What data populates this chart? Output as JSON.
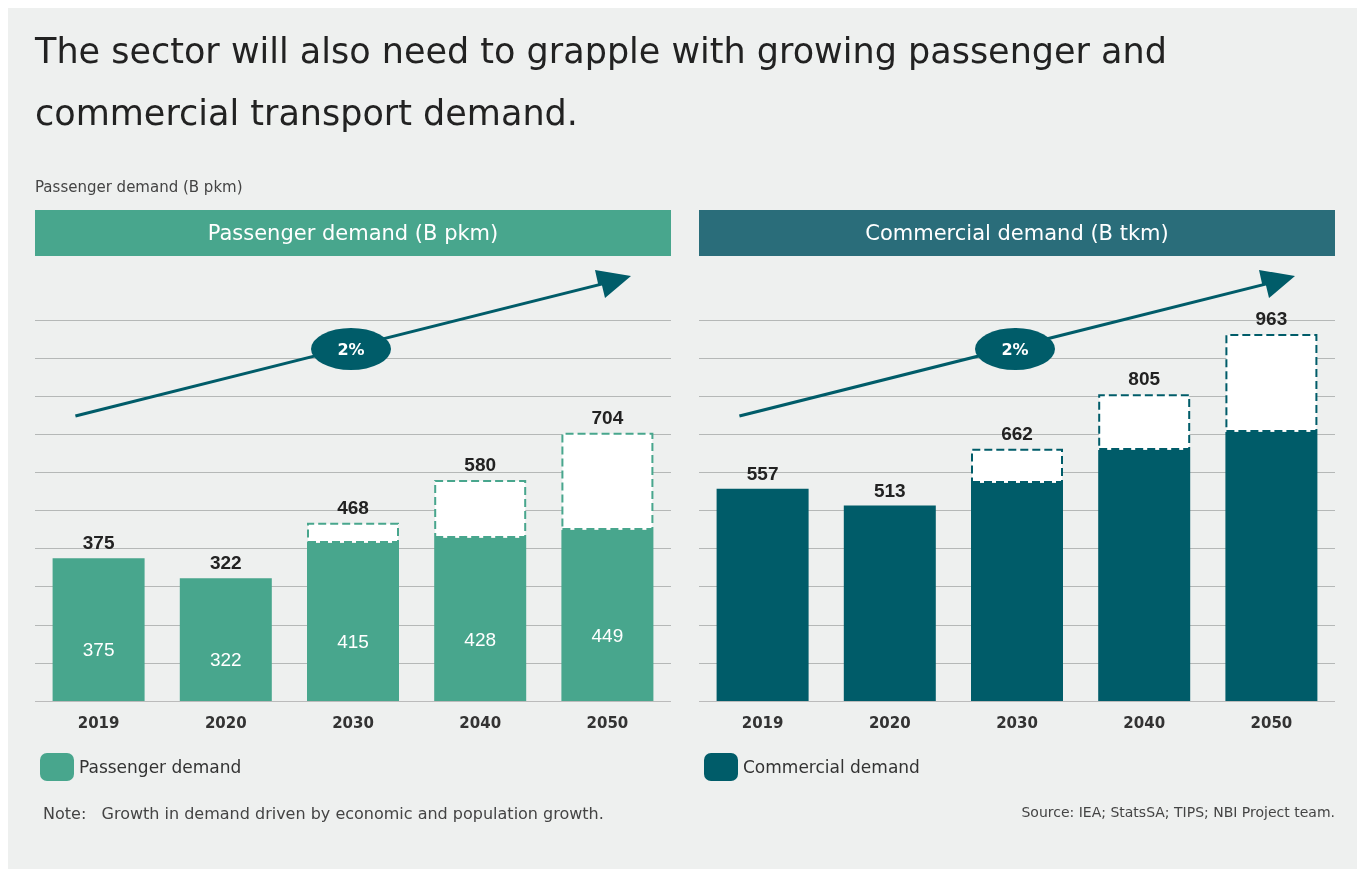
{
  "chart_data": [
    {
      "type": "bar",
      "title": "The sector will also need to grapple with growing passenger and commercial transport demand.",
      "subtitle": "Passenger demand (B pkm)",
      "ylabel": "Passenger demand (B pkm)",
      "categories": [
        "2019",
        "2020",
        "2030",
        "2040",
        "2050"
      ],
      "stacked": true,
      "series": [
        {
          "name": "Passenger demand",
          "color": "#48a68d",
          "values": [
            375,
            322,
            415,
            428,
            449
          ],
          "value_labels": [
            "375",
            "322",
            "415",
            "428",
            "449"
          ]
        },
        {
          "color": "#ffffff",
          "values": [
            null,
            null,
            53,
            152,
            255
          ],
          "line_style": "dashed"
        }
      ],
      "totals": [
        "375",
        "322",
        "468",
        "580",
        "704"
      ],
      "ylim": [
        0,
        1000
      ],
      "yticks": [
        {
          "value": 0,
          "label": null
        },
        {
          "value": 100,
          "label": null
        },
        {
          "value": 200,
          "label": null
        },
        {
          "value": 300,
          "label": null
        },
        {
          "value": 400,
          "label": null
        },
        {
          "value": 500,
          "label": null
        },
        {
          "value": 600,
          "label": null
        },
        {
          "value": 700,
          "label": null
        },
        {
          "value": 800,
          "label": null
        },
        {
          "value": 900,
          "label": null
        },
        {
          "value": 1000,
          "label": null
        }
      ],
      "tick_labels": "x",
      "grid": "y",
      "legend": "bottom left",
      "annotations": [
        "2%",
        "Note:   Growth in demand driven by economic and population growth."
      ]
    },
    {
      "type": "bar",
      "title": "Commercial demand (B tkm)",
      "categories": [
        "2019",
        "2020",
        "2030",
        "2040",
        "2050"
      ],
      "stacked": true,
      "series": [
        {
          "name": "Commercial demand",
          "color": "#005c69",
          "values": [
            557,
            513,
            572,
            659,
            706
          ],
          "value_labels": [
            "557",
            "513",
            null,
            null,
            null
          ]
        },
        {
          "color": "#ffffff",
          "values": [
            null,
            null,
            90,
            146,
            257
          ],
          "line_style": "dashed"
        }
      ],
      "totals": [
        null,
        null,
        "662",
        "805",
        "963"
      ],
      "ylim": [
        0,
        1000
      ],
      "yticks": [
        {
          "value": 0,
          "label": null
        },
        {
          "value": 100,
          "label": null
        },
        {
          "value": 200,
          "label": null
        },
        {
          "value": 300,
          "label": null
        },
        {
          "value": 400,
          "label": null
        },
        {
          "value": 500,
          "label": null
        },
        {
          "value": 600,
          "label": null
        },
        {
          "value": 700,
          "label": null
        },
        {
          "value": 800,
          "label": null
        },
        {
          "value": 900,
          "label": null
        },
        {
          "value": 1000,
          "label": null
        }
      ],
      "tick_labels": "x",
      "grid": "y",
      "legend": "bottom left",
      "annotations": [
        "2%",
        "Source: IEA; StatsSA; TIPS; NBI Project team."
      ]
    }
  ]
}
